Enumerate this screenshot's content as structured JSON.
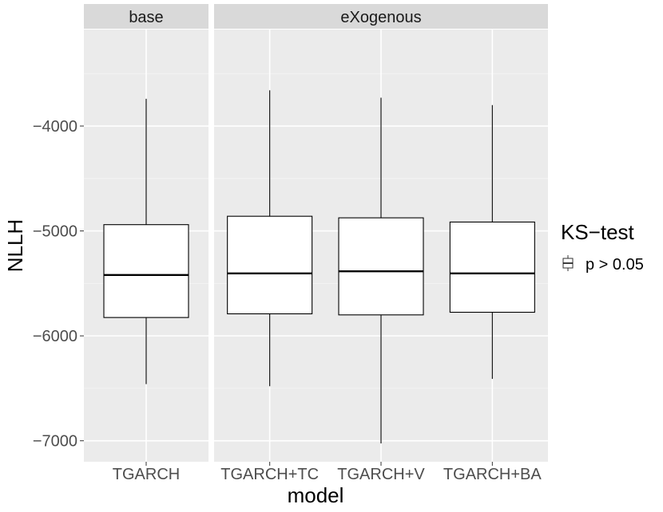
{
  "chart_data": {
    "type": "boxplot",
    "xlabel": "model",
    "ylabel": "NLLH",
    "ylim": [
      -7200,
      -3080
    ],
    "yticks": [
      -7000,
      -6000,
      -5000,
      -4000
    ],
    "ytick_labels": [
      "−7000",
      "−6000",
      "−5000",
      "−4000"
    ],
    "grid": true,
    "legend": {
      "title": "KS−test",
      "entries": [
        "p > 0.05"
      ],
      "position": "right"
    },
    "panels": [
      {
        "strip": "base",
        "categories": [
          "TGARCH"
        ],
        "boxes": [
          {
            "category": "TGARCH",
            "whisker_low": -6460,
            "q1": -5825,
            "median": -5420,
            "q3": -4940,
            "whisker_high": -3740
          }
        ]
      },
      {
        "strip": "eXogenous",
        "categories": [
          "TGARCH+TC",
          "TGARCH+V",
          "TGARCH+BA"
        ],
        "boxes": [
          {
            "category": "TGARCH+TC",
            "whisker_low": -6480,
            "q1": -5790,
            "median": -5405,
            "q3": -4860,
            "whisker_high": -3660
          },
          {
            "category": "TGARCH+V",
            "whisker_low": -7025,
            "q1": -5800,
            "median": -5385,
            "q3": -4875,
            "whisker_high": -3730
          },
          {
            "category": "TGARCH+BA",
            "whisker_low": -6410,
            "q1": -5775,
            "median": -5405,
            "q3": -4915,
            "whisker_high": -3800
          }
        ]
      }
    ]
  }
}
